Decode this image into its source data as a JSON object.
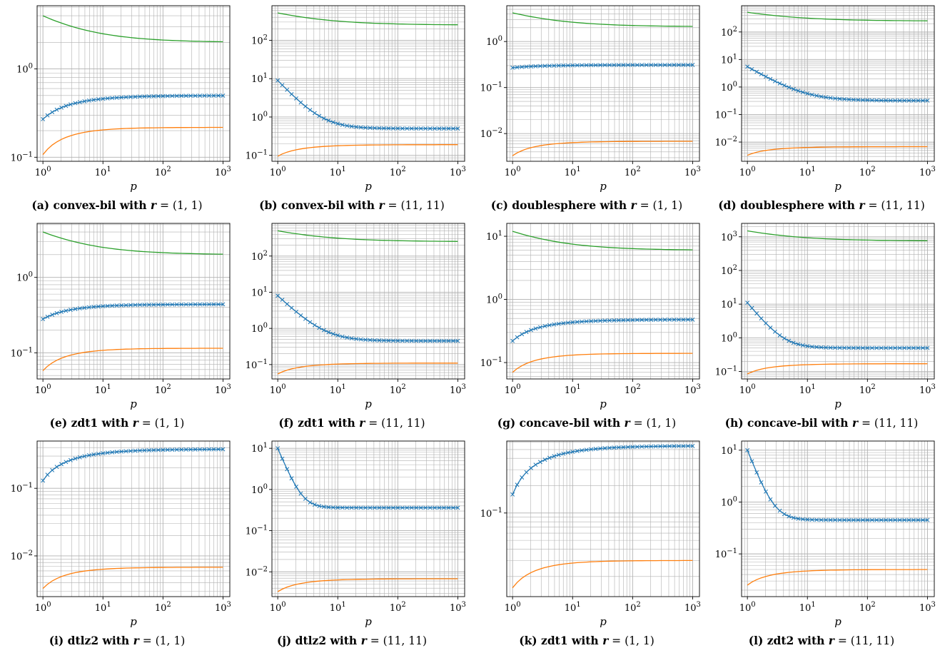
{
  "chart_data": [
    {
      "type": "line",
      "caption": "(a) convex-bil with",
      "r_symbol": "r",
      "r_value": "= (1, 1)",
      "xlabel": "p",
      "yscale": "log",
      "xscale": "log",
      "xlim": [
        0.8,
        1300
      ],
      "ylim": [
        0.09,
        5.2
      ],
      "yticks": [
        {
          "v": 0.1,
          "b": "10",
          "e": "−1"
        },
        {
          "v": 1,
          "b": "10",
          "e": "0"
        }
      ],
      "series": [
        {
          "color": "#2ca02c",
          "start": 4.0,
          "end": 2.0,
          "k": 0.6,
          "marker": false
        },
        {
          "color": "#1f77b4",
          "start": 0.27,
          "end": 0.5,
          "k": 0.75,
          "marker": true
        },
        {
          "color": "#ff7f0e",
          "start": 0.107,
          "end": 0.218,
          "k": 0.9,
          "marker": false
        }
      ]
    },
    {
      "type": "line",
      "caption": "(b) convex-bil with",
      "r_symbol": "r",
      "r_value": "= (11, 11)",
      "xlabel": "p",
      "yscale": "log",
      "xscale": "log",
      "xlim": [
        0.8,
        1300
      ],
      "ylim": [
        0.07,
        800
      ],
      "yticks": [
        {
          "v": 0.1,
          "b": "10",
          "e": "−1"
        },
        {
          "v": 1,
          "b": "10",
          "e": "0"
        },
        {
          "v": 10,
          "b": "10",
          "e": "1"
        },
        {
          "v": 100,
          "b": "10",
          "e": "2"
        }
      ],
      "series": [
        {
          "color": "#2ca02c",
          "start": 520,
          "end": 250,
          "k": 0.6,
          "marker": false
        },
        {
          "color": "#1f77b4",
          "start": 9.0,
          "end": 0.5,
          "k": 1.7,
          "marker": true
        },
        {
          "color": "#ff7f0e",
          "start": 0.095,
          "end": 0.19,
          "k": 0.9,
          "marker": false
        }
      ]
    },
    {
      "type": "line",
      "caption": "(c) doublesphere with",
      "r_symbol": "r",
      "r_value": "= (1, 1)",
      "xlabel": "p",
      "yscale": "log",
      "xscale": "log",
      "xlim": [
        0.8,
        1300
      ],
      "ylim": [
        0.0025,
        6
      ],
      "yticks": [
        {
          "v": 0.01,
          "b": "10",
          "e": "−2"
        },
        {
          "v": 0.1,
          "b": "10",
          "e": "−1"
        },
        {
          "v": 1,
          "b": "10",
          "e": "0"
        }
      ],
      "series": [
        {
          "color": "#2ca02c",
          "start": 4.2,
          "end": 2.1,
          "k": 0.6,
          "marker": false
        },
        {
          "color": "#1f77b4",
          "start": 0.27,
          "end": 0.31,
          "k": 0.8,
          "marker": true
        },
        {
          "color": "#ff7f0e",
          "start": 0.0033,
          "end": 0.0068,
          "k": 0.9,
          "marker": false
        }
      ]
    },
    {
      "type": "line",
      "caption": "(d) doublesphere with",
      "r_symbol": "r",
      "r_value": "= (11, 11)",
      "xlabel": "p",
      "yscale": "log",
      "xscale": "log",
      "xlim": [
        0.8,
        1300
      ],
      "ylim": [
        0.002,
        900
      ],
      "yticks": [
        {
          "v": 0.01,
          "b": "10",
          "e": "−2"
        },
        {
          "v": 0.1,
          "b": "10",
          "e": "−1"
        },
        {
          "v": 1,
          "b": "10",
          "e": "0"
        },
        {
          "v": 10,
          "b": "10",
          "e": "1"
        },
        {
          "v": 100,
          "b": "10",
          "e": "2"
        }
      ],
      "series": [
        {
          "color": "#2ca02c",
          "start": 520,
          "end": 250,
          "k": 0.6,
          "marker": false
        },
        {
          "color": "#1f77b4",
          "start": 5.5,
          "end": 0.32,
          "k": 1.3,
          "marker": true
        },
        {
          "color": "#ff7f0e",
          "start": 0.0033,
          "end": 0.0068,
          "k": 0.9,
          "marker": false
        }
      ]
    },
    {
      "type": "line",
      "caption": "(e) zdt1 with",
      "r_symbol": "r",
      "r_value": "= (1, 1)",
      "xlabel": "p",
      "yscale": "log",
      "xscale": "log",
      "xlim": [
        0.8,
        1300
      ],
      "ylim": [
        0.045,
        5.2
      ],
      "yticks": [
        {
          "v": 0.1,
          "b": "10",
          "e": "−1"
        },
        {
          "v": 1,
          "b": "10",
          "e": "0"
        }
      ],
      "series": [
        {
          "color": "#2ca02c",
          "start": 4.0,
          "end": 2.0,
          "k": 0.6,
          "marker": false
        },
        {
          "color": "#1f77b4",
          "start": 0.28,
          "end": 0.44,
          "k": 0.8,
          "marker": true
        },
        {
          "color": "#ff7f0e",
          "start": 0.058,
          "end": 0.115,
          "k": 0.9,
          "marker": false
        }
      ]
    },
    {
      "type": "line",
      "caption": "(f) zdt1 with",
      "r_symbol": "r",
      "r_value": "= (11, 11)",
      "xlabel": "p",
      "yscale": "log",
      "xscale": "log",
      "xlim": [
        0.8,
        1300
      ],
      "ylim": [
        0.04,
        800
      ],
      "yticks": [
        {
          "v": 0.1,
          "b": "10",
          "e": "−1"
        },
        {
          "v": 1,
          "b": "10",
          "e": "0"
        },
        {
          "v": 10,
          "b": "10",
          "e": "1"
        },
        {
          "v": 100,
          "b": "10",
          "e": "2"
        }
      ],
      "series": [
        {
          "color": "#2ca02c",
          "start": 500,
          "end": 250,
          "k": 0.6,
          "marker": false
        },
        {
          "color": "#1f77b4",
          "start": 8.0,
          "end": 0.45,
          "k": 1.6,
          "marker": true
        },
        {
          "color": "#ff7f0e",
          "start": 0.055,
          "end": 0.11,
          "k": 0.9,
          "marker": false
        }
      ]
    },
    {
      "type": "line",
      "caption": "(g) concave-bil with",
      "r_symbol": "r",
      "r_value": "= (1, 1)",
      "xlabel": "p",
      "yscale": "log",
      "xscale": "log",
      "xlim": [
        0.8,
        1300
      ],
      "ylim": [
        0.055,
        16
      ],
      "yticks": [
        {
          "v": 0.1,
          "b": "10",
          "e": "−1"
        },
        {
          "v": 1,
          "b": "10",
          "e": "0"
        },
        {
          "v": 10,
          "b": "10",
          "e": "1"
        }
      ],
      "series": [
        {
          "color": "#2ca02c",
          "start": 12,
          "end": 6.0,
          "k": 0.6,
          "marker": false
        },
        {
          "color": "#1f77b4",
          "start": 0.22,
          "end": 0.48,
          "k": 0.75,
          "marker": true
        },
        {
          "color": "#ff7f0e",
          "start": 0.07,
          "end": 0.14,
          "k": 0.9,
          "marker": false
        }
      ]
    },
    {
      "type": "line",
      "caption": "(h) concave-bil with",
      "r_symbol": "r",
      "r_value": "= (11, 11)",
      "xlabel": "p",
      "yscale": "log",
      "xscale": "log",
      "xlim": [
        0.8,
        1300
      ],
      "ylim": [
        0.06,
        2500
      ],
      "yticks": [
        {
          "v": 0.1,
          "b": "10",
          "e": "−1"
        },
        {
          "v": 1,
          "b": "10",
          "e": "0"
        },
        {
          "v": 10,
          "b": "10",
          "e": "1"
        },
        {
          "v": 100,
          "b": "10",
          "e": "2"
        },
        {
          "v": 1000,
          "b": "10",
          "e": "3"
        }
      ],
      "series": [
        {
          "color": "#2ca02c",
          "start": 1500,
          "end": 750,
          "k": 0.6,
          "marker": false
        },
        {
          "color": "#1f77b4",
          "start": 11,
          "end": 0.5,
          "k": 2.2,
          "marker": true
        },
        {
          "color": "#ff7f0e",
          "start": 0.085,
          "end": 0.17,
          "k": 0.9,
          "marker": false
        }
      ]
    },
    {
      "type": "line",
      "caption": "(i) dtlz2 with",
      "r_symbol": "r",
      "r_value": "= (1, 1)",
      "xlabel": "p",
      "yscale": "log",
      "xscale": "log",
      "xlim": [
        0.8,
        1300
      ],
      "ylim": [
        0.0025,
        0.5
      ],
      "yticks": [
        {
          "v": 0.01,
          "b": "10",
          "e": "−2"
        },
        {
          "v": 0.1,
          "b": "10",
          "e": "−1"
        }
      ],
      "series": [
        {
          "color": "#1f77b4",
          "start": 0.13,
          "end": 0.38,
          "k": 0.7,
          "marker": true
        },
        {
          "color": "#ff7f0e",
          "start": 0.0033,
          "end": 0.0068,
          "k": 0.9,
          "marker": false
        }
      ]
    },
    {
      "type": "line",
      "caption": "(j) dtlz2 with",
      "r_symbol": "r",
      "r_value": "= (11, 11)",
      "xlabel": "p",
      "yscale": "log",
      "xscale": "log",
      "xlim": [
        0.8,
        1300
      ],
      "ylim": [
        0.0025,
        15
      ],
      "yticks": [
        {
          "v": 0.01,
          "b": "10",
          "e": "−2"
        },
        {
          "v": 0.1,
          "b": "10",
          "e": "−1"
        },
        {
          "v": 1,
          "b": "10",
          "e": "0"
        },
        {
          "v": 10,
          "b": "10",
          "e": "1"
        }
      ],
      "series": [
        {
          "color": "#1f77b4",
          "start": 10,
          "end": 0.36,
          "k": 3.5,
          "marker": true
        },
        {
          "color": "#ff7f0e",
          "start": 0.0033,
          "end": 0.0068,
          "k": 0.9,
          "marker": false
        }
      ]
    },
    {
      "type": "line",
      "caption": "(k) zdt1 with",
      "r_symbol": "r",
      "r_value": "= (1, 1)",
      "xlabel": "p",
      "yscale": "log",
      "xscale": "log",
      "xlim": [
        0.8,
        1300
      ],
      "ylim": [
        0.012,
        0.62
      ],
      "yticks": [
        {
          "v": 0.1,
          "b": "10",
          "e": "−1"
        }
      ],
      "series": [
        {
          "color": "#1f77b4",
          "start": 0.16,
          "end": 0.55,
          "k": 0.7,
          "marker": true
        },
        {
          "color": "#ff7f0e",
          "start": 0.015,
          "end": 0.03,
          "k": 0.9,
          "marker": false
        }
      ]
    },
    {
      "type": "line",
      "caption": "(l) zdt2 with",
      "r_symbol": "r",
      "r_value": "= (11, 11)",
      "xlabel": "p",
      "yscale": "log",
      "xscale": "log",
      "xlim": [
        0.8,
        1300
      ],
      "ylim": [
        0.015,
        15
      ],
      "yticks": [
        {
          "v": 0.1,
          "b": "10",
          "e": "−1"
        },
        {
          "v": 1,
          "b": "10",
          "e": "0"
        },
        {
          "v": 10,
          "b": "10",
          "e": "1"
        }
      ],
      "series": [
        {
          "color": "#1f77b4",
          "start": 10,
          "end": 0.45,
          "k": 3.0,
          "marker": true
        },
        {
          "color": "#ff7f0e",
          "start": 0.025,
          "end": 0.05,
          "k": 0.9,
          "marker": false
        }
      ]
    }
  ]
}
